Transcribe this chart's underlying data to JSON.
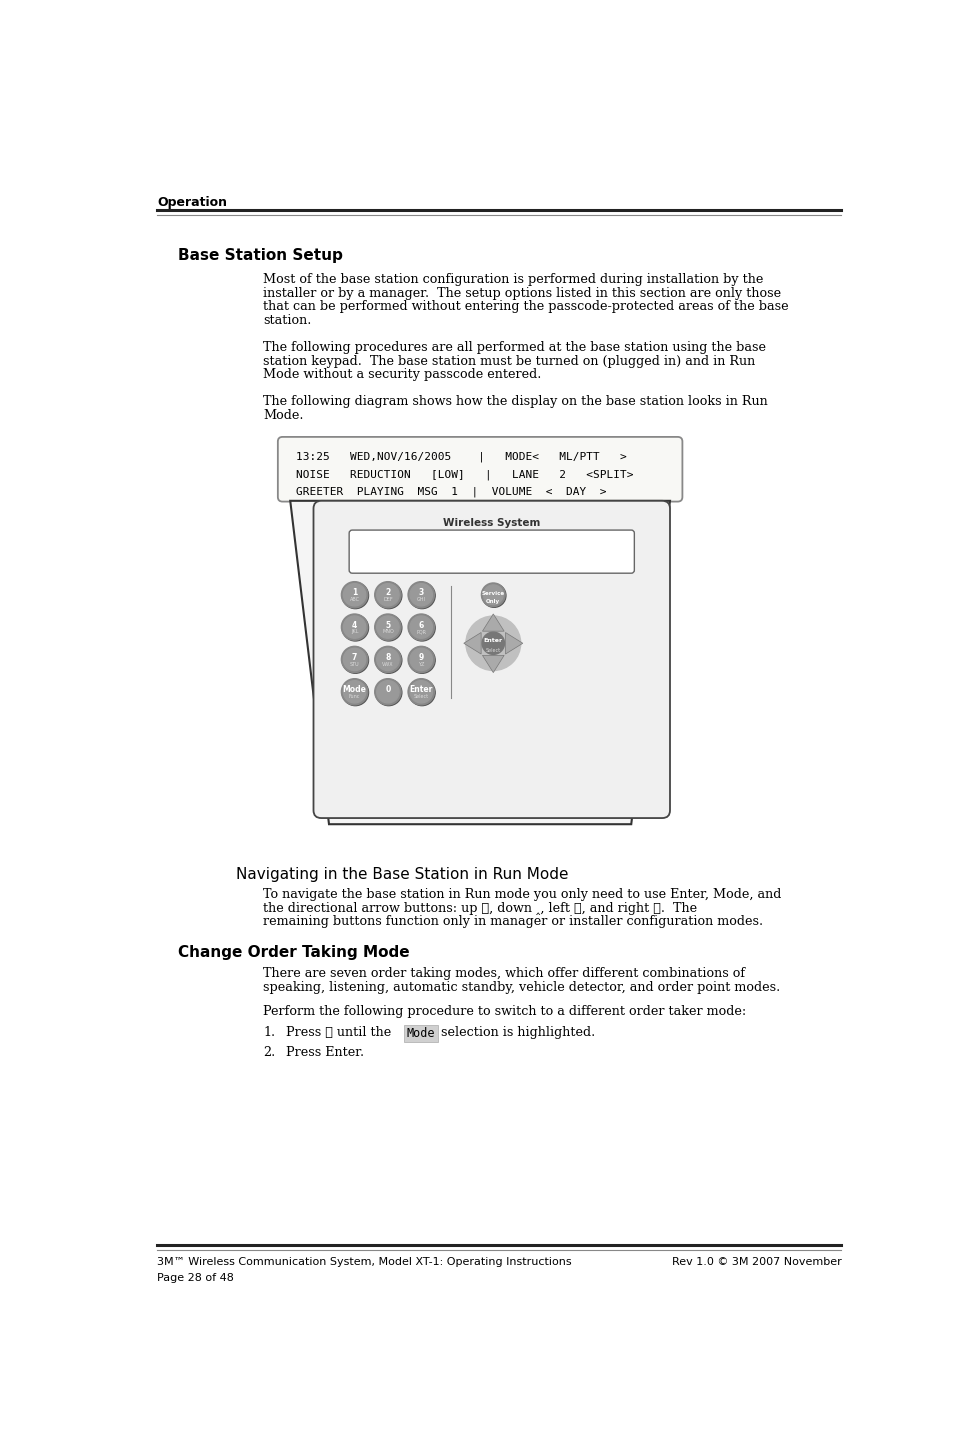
{
  "page_width": 9.58,
  "page_height": 14.56,
  "bg_color": "#ffffff",
  "header_text": "Operation",
  "section1_title": "Base Station Setup",
  "display_line1": "13:25   WED,NOV/16/2005    |   MODE<   ML/PTT   >",
  "display_line2": "NOISE   REDUCTION   [LOW]   |   LANE   2   <SPLIT>",
  "display_line3": "GREETER  PLAYING  MSG  1  |  VOLUME  <  DAY  >",
  "nav_section_title": "Navigating in the Base Station in Run Mode",
  "section2_title": "Change Order Taking Mode",
  "footer_left": "3M™ Wireless Communication System, Model XT-1: Operating Instructions",
  "footer_right": "Rev 1.0 © 3M 2007 November",
  "footer_page": "Page 28 of 48",
  "text_color": "#000000",
  "display_bg": "#f8f8f5",
  "display_border": "#888888",
  "kpad_border": "#555555",
  "kpad_fill": "#f0f0f0",
  "btn_fill": "#888888",
  "btn_dark": "#666666"
}
